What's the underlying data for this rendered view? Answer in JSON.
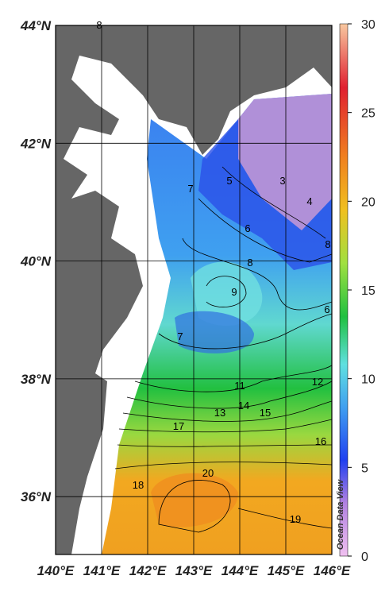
{
  "map": {
    "lat_labels": [
      "44°N",
      "42°N",
      "40°N",
      "38°N",
      "36°N"
    ],
    "lon_labels": [
      "140°E",
      "141°E",
      "142°E",
      "143°E",
      "144°E",
      "145°E",
      "146°E"
    ],
    "colorbar": {
      "lim": [
        0,
        30
      ],
      "ticks": [
        0,
        5,
        10,
        15,
        20,
        25,
        30
      ]
    },
    "contour_labels": [
      "8",
      "5",
      "3",
      "4",
      "7",
      "6",
      "8",
      "8",
      "9",
      "7",
      "6",
      "11",
      "12",
      "13",
      "14",
      "15",
      "17",
      "16",
      "18",
      "20",
      "19"
    ],
    "credit": "Ocean Data View"
  }
}
